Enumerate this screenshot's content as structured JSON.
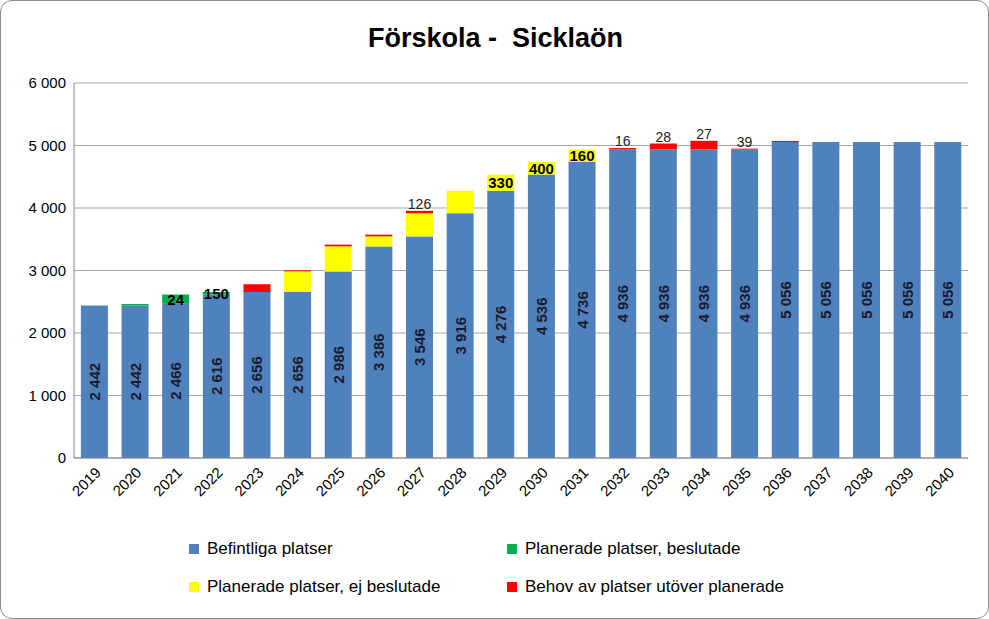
{
  "chart_data": {
    "type": "bar",
    "title": "Förskola -  Sicklaön",
    "categories": [
      "2019",
      "2020",
      "2021",
      "2022",
      "2023",
      "2024",
      "2025",
      "2026",
      "2027",
      "2028",
      "2029",
      "2030",
      "2031",
      "2032",
      "2033",
      "2034",
      "2035",
      "2036",
      "2037",
      "2038",
      "2039",
      "2040"
    ],
    "ylim": [
      0,
      6000
    ],
    "yticks": [
      0,
      {
        "value": 1000,
        "label": "1 000"
      },
      {
        "value": 2000,
        "label": "2 000"
      },
      {
        "value": 3000,
        "label": "3 000"
      },
      {
        "value": 4000,
        "label": "4 000"
      },
      {
        "value": 5000,
        "label": "5 000"
      },
      {
        "value": 6000,
        "label": "6 000"
      }
    ],
    "grid": true,
    "stacked": true,
    "data_labels": true,
    "legend": "bottom",
    "series": [
      {
        "name": "Befintliga platser",
        "color": "#4f81bd",
        "values": [
          2442,
          2442,
          2466,
          2616,
          2656,
          2656,
          2986,
          3386,
          3546,
          3916,
          4276,
          4536,
          4736,
          4936,
          4936,
          4936,
          4936,
          5056,
          5056,
          5056,
          5056,
          5056
        ],
        "value_labels": [
          "2 442",
          "2 442",
          "2 466",
          "2 616",
          "2 656",
          "2 656",
          "2 986",
          "3 386",
          "3 546",
          "3 916",
          "4 276",
          "4 536",
          "4 736",
          "4 936",
          "4 936",
          "4 936",
          "4 936",
          "5 056",
          "5 056",
          "5 056",
          "5 056",
          "5 056"
        ]
      },
      {
        "name": "Planerade platser, beslutade",
        "color": "#00b050",
        "values": [
          null,
          24,
          150,
          40,
          null,
          null,
          null,
          null,
          null,
          null,
          null,
          null,
          null,
          null,
          null,
          null,
          null,
          null,
          null,
          null,
          null,
          null
        ]
      },
      {
        "name": "Planerade platser, ej beslutade",
        "color": "#ffff00",
        "values": [
          null,
          null,
          null,
          null,
          null,
          330,
          400,
          160,
          370,
          360,
          260,
          200,
          200,
          null,
          null,
          null,
          null,
          null,
          null,
          null,
          null,
          null
        ]
      },
      {
        "name": "Behov av platser utöver planerade",
        "color": "#ff0000",
        "values": [
          null,
          null,
          null,
          null,
          126,
          16,
          28,
          27,
          39,
          null,
          null,
          null,
          null,
          23,
          96,
          139,
          14,
          17,
          null,
          null,
          null,
          null
        ]
      }
    ]
  }
}
